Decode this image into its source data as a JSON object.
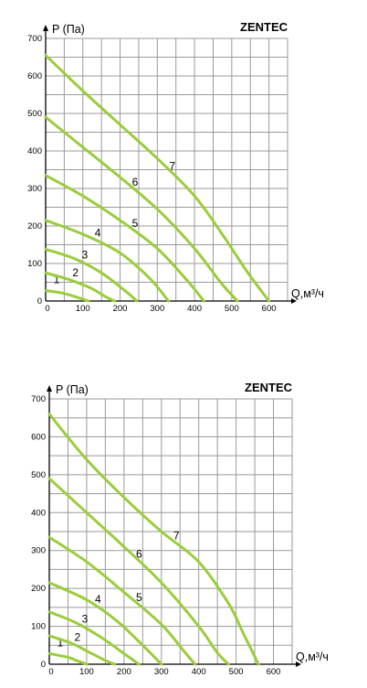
{
  "chart_data": [
    {
      "type": "line",
      "title": "",
      "brand": "ZENTEC",
      "ylabel": "P (Па)",
      "xlabel": "Q,м³/ч",
      "xlim": [
        0,
        650
      ],
      "ylim": [
        0,
        700
      ],
      "xticks": [
        0,
        100,
        200,
        300,
        400,
        500,
        600
      ],
      "yticks": [
        0,
        100,
        200,
        300,
        400,
        500,
        600,
        700
      ],
      "grid": true,
      "line_color": "#9acd3c",
      "series": [
        {
          "name": "1",
          "x": [
            0,
            50,
            90,
            115
          ],
          "y": [
            28,
            20,
            8,
            0
          ]
        },
        {
          "name": "2",
          "x": [
            0,
            60,
            120,
            160,
            185
          ],
          "y": [
            75,
            58,
            35,
            12,
            0
          ]
        },
        {
          "name": "3",
          "x": [
            0,
            80,
            150,
            210,
            245
          ],
          "y": [
            138,
            112,
            75,
            30,
            0
          ]
        },
        {
          "name": "4",
          "x": [
            0,
            100,
            200,
            280,
            330
          ],
          "y": [
            215,
            178,
            128,
            60,
            0
          ]
        },
        {
          "name": "5",
          "x": [
            0,
            100,
            200,
            300,
            380,
            425
          ],
          "y": [
            335,
            280,
            215,
            140,
            55,
            0
          ]
        },
        {
          "name": "6",
          "x": [
            0,
            100,
            200,
            300,
            400,
            470,
            515
          ],
          "y": [
            490,
            410,
            330,
            245,
            140,
            50,
            0
          ]
        },
        {
          "name": "7",
          "x": [
            0,
            100,
            200,
            300,
            400,
            480,
            540,
            600
          ],
          "y": [
            655,
            560,
            470,
            380,
            280,
            170,
            80,
            0
          ]
        }
      ]
    },
    {
      "type": "line",
      "title": "",
      "brand": "ZENTEC",
      "ylabel": "P (Па)",
      "xlabel": "Q,м³/ч",
      "xlim": [
        0,
        650
      ],
      "ylim": [
        0,
        700
      ],
      "xticks": [
        0,
        100,
        200,
        300,
        400,
        500,
        600
      ],
      "yticks": [
        0,
        100,
        200,
        300,
        400,
        500,
        600,
        700
      ],
      "grid": true,
      "line_color": "#9acd3c",
      "series": [
        {
          "name": "1",
          "x": [
            0,
            50,
            80,
            100
          ],
          "y": [
            28,
            18,
            7,
            0
          ]
        },
        {
          "name": "2",
          "x": [
            0,
            60,
            110,
            150,
            175
          ],
          "y": [
            75,
            55,
            30,
            10,
            0
          ]
        },
        {
          "name": "3",
          "x": [
            0,
            70,
            140,
            200,
            240
          ],
          "y": [
            138,
            110,
            70,
            28,
            0
          ]
        },
        {
          "name": "4",
          "x": [
            0,
            100,
            180,
            250,
            300
          ],
          "y": [
            215,
            170,
            115,
            50,
            0
          ]
        },
        {
          "name": "5",
          "x": [
            0,
            100,
            200,
            300,
            360,
            390
          ],
          "y": [
            335,
            270,
            190,
            105,
            35,
            0
          ]
        },
        {
          "name": "6",
          "x": [
            0,
            100,
            200,
            300,
            400,
            450,
            480
          ],
          "y": [
            490,
            400,
            310,
            215,
            100,
            30,
            0
          ]
        },
        {
          "name": "7",
          "x": [
            0,
            100,
            200,
            300,
            400,
            480,
            520,
            560
          ],
          "y": [
            660,
            540,
            440,
            350,
            270,
            160,
            80,
            0
          ]
        }
      ]
    }
  ]
}
